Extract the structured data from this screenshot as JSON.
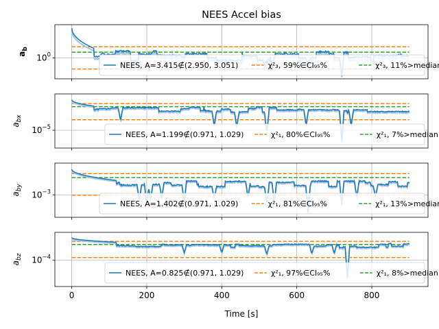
{
  "chart_data": {
    "type": "line",
    "title": "NEES Accel bias",
    "xlabel": "Time [s]",
    "xlim": [
      -45,
      950
    ],
    "xticks": [
      0,
      200,
      400,
      600,
      800
    ],
    "scale": "log",
    "grid": true,
    "legend_placement": "lower-right",
    "colors": {
      "nees": "#1f77b4",
      "ci": "#ff7f0e",
      "median": "#2ca02c"
    },
    "panels": [
      {
        "ylabel": "a_b",
        "ylabel_bold": true,
        "ytick_label": "10",
        "ytick_exp": "0",
        "ytick_value": 1,
        "ylim": [
          0.55,
          2.6
        ],
        "ci_lower": 0.73,
        "ci_upper": 1.38,
        "median": 1.18,
        "nees": {
          "start": 2.35,
          "settle_t": 60,
          "base": 1.05,
          "noise": 0.05,
          "dips": [
            [
              515,
              0.82
            ],
            [
              535,
              0.72
            ],
            [
              630,
              0.78
            ],
            [
              720,
              0.62
            ]
          ]
        },
        "legend": [
          {
            "kind": "nees",
            "text": "NEES, A=3.415∉(2.950, 3.051)"
          },
          {
            "kind": "ci",
            "text": "χ²₃, 59%∈CI₉₅%"
          },
          {
            "kind": "median",
            "text": "χ²₃, 11%>median"
          }
        ]
      },
      {
        "ylabel": "a_bx",
        "ylabel_bold": false,
        "ytick_label": "10",
        "ytick_exp": "−5",
        "ytick_value": 1e-05,
        "ylim": [
          3.5e-06,
          8.5e-05
        ],
        "ci_lower": 1.85e-05,
        "ci_upper": 4.8e-05,
        "median": 4e-05,
        "nees": {
          "start": 6e-05,
          "settle_t": 60,
          "base": 3.3e-05,
          "noise": 0.06,
          "dips": [
            [
              130,
              1.8e-05
            ],
            [
              380,
              1.3e-05
            ],
            [
              440,
              1.2e-05
            ],
            [
              520,
              9e-06
            ],
            [
              625,
              1.35e-05
            ],
            [
              720,
              5.2e-06
            ],
            [
              745,
              1.3e-05
            ]
          ]
        },
        "legend": [
          {
            "kind": "nees",
            "text": "NEES, A=1.199∉(0.971, 1.029)"
          },
          {
            "kind": "ci",
            "text": "χ²₁, 80%∈CI₉₅%"
          },
          {
            "kind": "median",
            "text": "χ²₁, 7%>median"
          }
        ]
      },
      {
        "ylabel": "a_by",
        "ylabel_bold": false,
        "ytick_label": "10",
        "ytick_exp": "−3",
        "ytick_value": 0.001,
        "ylim": [
          0.00022,
          0.0085
        ],
        "ci_lower": 0.00098,
        "ci_upper": 0.0042,
        "median": 0.0032,
        "nees": {
          "start": 0.0056,
          "settle_t": 120,
          "base": 0.0021,
          "noise": 0.08,
          "dips": [
            [
              180,
              0.0007
            ],
            [
              200,
              0.00045
            ],
            [
              210,
              0.0007
            ],
            [
              240,
              0.0008
            ],
            [
              300,
              0.0006
            ],
            [
              380,
              0.0008
            ],
            [
              470,
              0.0008
            ],
            [
              520,
              0.0006
            ],
            [
              540,
              0.0006
            ],
            [
              630,
              0.0003
            ],
            [
              720,
              0.00052
            ],
            [
              760,
              0.0008
            ],
            [
              810,
              0.0009
            ]
          ]
        },
        "legend": [
          {
            "kind": "nees",
            "text": "NEES, A=1.402∉(0.971, 1.029)"
          },
          {
            "kind": "ci",
            "text": "χ²₁, 81%∈CI₉₅%"
          },
          {
            "kind": "median",
            "text": "χ²₁, 13%>median"
          }
        ]
      },
      {
        "ylabel": "a_bz",
        "ylabel_bold": false,
        "ytick_label": "10",
        "ytick_exp": "−4",
        "ytick_value": 0.0001,
        "ylim": [
          1.7e-05,
          0.00066
        ],
        "ci_lower": 0.00012,
        "ci_upper": 0.00036,
        "median": 0.00029,
        "nees": {
          "start": 0.00046,
          "settle_t": 120,
          "base": 0.00027,
          "noise": 0.05,
          "dips": [
            [
              300,
              0.00017
            ],
            [
              400,
              0.00017
            ],
            [
              520,
              0.00015
            ],
            [
              640,
              0.00016
            ],
            [
              700,
              0.00016
            ],
            [
              735,
              3e-05
            ]
          ]
        },
        "legend": [
          {
            "kind": "nees",
            "text": "NEES, A=0.825∉(0.971, 1.029)"
          },
          {
            "kind": "ci",
            "text": "χ²₁, 97%∈CI₉₅%"
          },
          {
            "kind": "median",
            "text": "χ²₁, 8%>median"
          }
        ]
      }
    ]
  }
}
